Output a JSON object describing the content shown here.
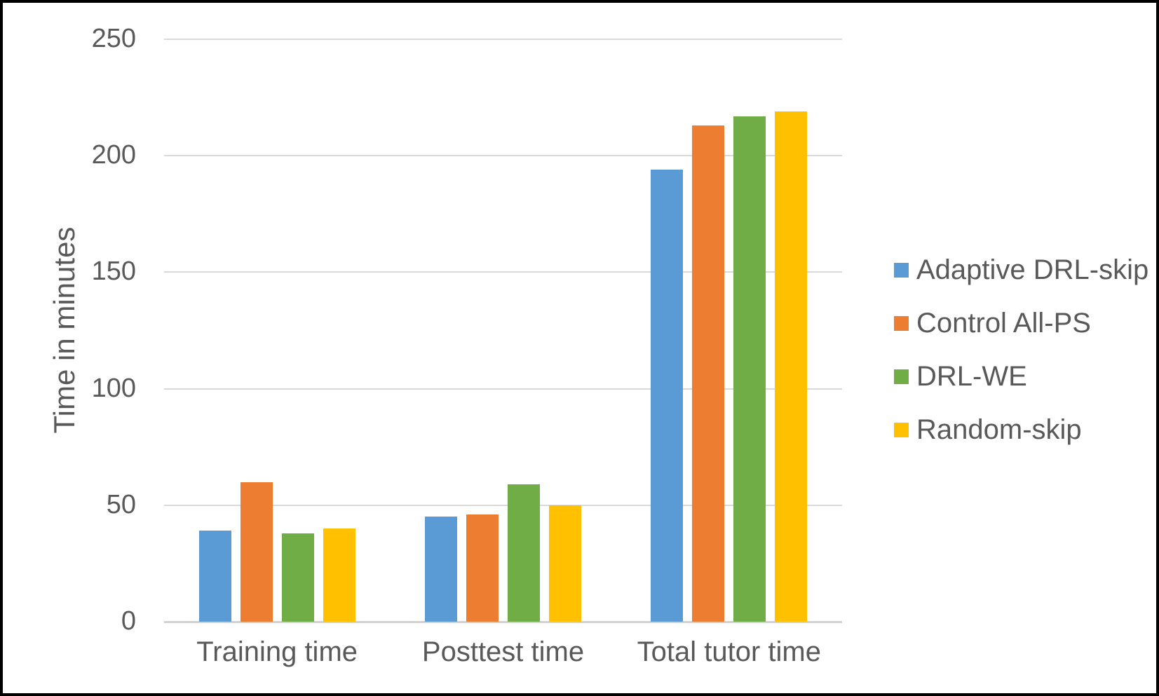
{
  "chart_data": {
    "type": "bar",
    "title": "",
    "xlabel": "",
    "ylabel": "Time in minutes",
    "categories": [
      "Training time",
      "Posttest time",
      "Total tutor time"
    ],
    "series": [
      {
        "name": "Adaptive DRL-skip",
        "color": "#5B9BD5",
        "values": [
          39,
          45,
          194
        ]
      },
      {
        "name": "Control All-PS",
        "color": "#ED7D31",
        "values": [
          60,
          46,
          213
        ]
      },
      {
        "name": "DRL-WE",
        "color": "#70AD47",
        "values": [
          38,
          59,
          217
        ]
      },
      {
        "name": "Random-skip",
        "color": "#FFC000",
        "values": [
          40,
          50,
          219
        ]
      }
    ],
    "ylim": [
      0,
      250
    ],
    "yticks": [
      0,
      50,
      100,
      150,
      200,
      250
    ],
    "grid": true,
    "legend_position": "right",
    "text_color": "#595959",
    "gridline_color": "#D9D9D9",
    "axis_line_color": "#D2D2D2"
  }
}
